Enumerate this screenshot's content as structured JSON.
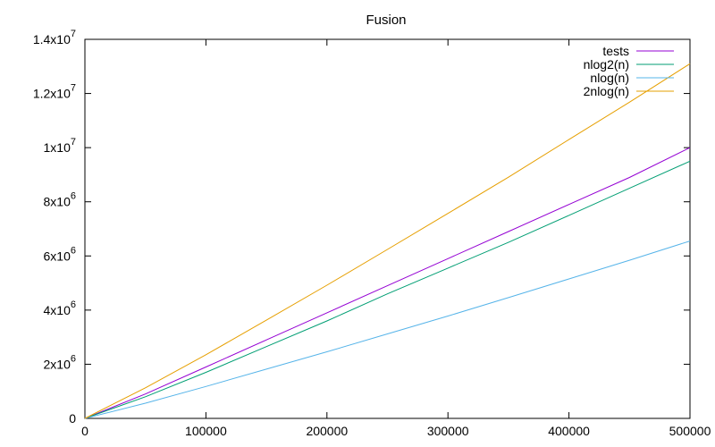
{
  "chart_data": {
    "type": "line",
    "title": "Fusion",
    "xlabel": "",
    "ylabel": "",
    "xlim": [
      0,
      500000
    ],
    "ylim": [
      0,
      14000000
    ],
    "grid": false,
    "legend_position": "top-right",
    "x_ticks": [
      {
        "value": 0,
        "label": "0"
      },
      {
        "value": 100000,
        "label": "100000"
      },
      {
        "value": 200000,
        "label": "200000"
      },
      {
        "value": 300000,
        "label": "300000"
      },
      {
        "value": 400000,
        "label": "400000"
      },
      {
        "value": 500000,
        "label": "500000"
      }
    ],
    "y_ticks": [
      {
        "value": 0,
        "mantissa": "0",
        "exponent": ""
      },
      {
        "value": 2000000,
        "mantissa": "2x10",
        "exponent": "6"
      },
      {
        "value": 4000000,
        "mantissa": "4x10",
        "exponent": "6"
      },
      {
        "value": 6000000,
        "mantissa": "6x10",
        "exponent": "6"
      },
      {
        "value": 8000000,
        "mantissa": "8x10",
        "exponent": "6"
      },
      {
        "value": 10000000,
        "mantissa": "1x10",
        "exponent": "7"
      },
      {
        "value": 12000000,
        "mantissa": "1.2x10",
        "exponent": "7"
      },
      {
        "value": 14000000,
        "mantissa": "1.4x10",
        "exponent": "7"
      }
    ],
    "x": [
      0,
      50000,
      100000,
      150000,
      200000,
      250000,
      300000,
      350000,
      400000,
      450000,
      500000
    ],
    "series": [
      {
        "name": "tests",
        "color": "#9400d3",
        "values": [
          0,
          900000,
          1900000,
          2900000,
          3900000,
          4900000,
          5900000,
          6900000,
          7900000,
          8900000,
          10000000
        ]
      },
      {
        "name": "nlog2(n)",
        "color": "#009e73",
        "values": [
          0,
          800000,
          1700000,
          2650000,
          3600000,
          4600000,
          5550000,
          6500000,
          7500000,
          8500000,
          9500000
        ]
      },
      {
        "name": "nlog(n)",
        "color": "#56b4e9",
        "values": [
          0,
          560000,
          1180000,
          1820000,
          2460000,
          3120000,
          3780000,
          4460000,
          5150000,
          5840000,
          6550000
        ]
      },
      {
        "name": "2nlog(n)",
        "color": "#e69f00",
        "values": [
          0,
          1130000,
          2350000,
          3630000,
          4920000,
          6240000,
          7570000,
          8910000,
          10300000,
          11680000,
          13100000
        ]
      }
    ]
  }
}
